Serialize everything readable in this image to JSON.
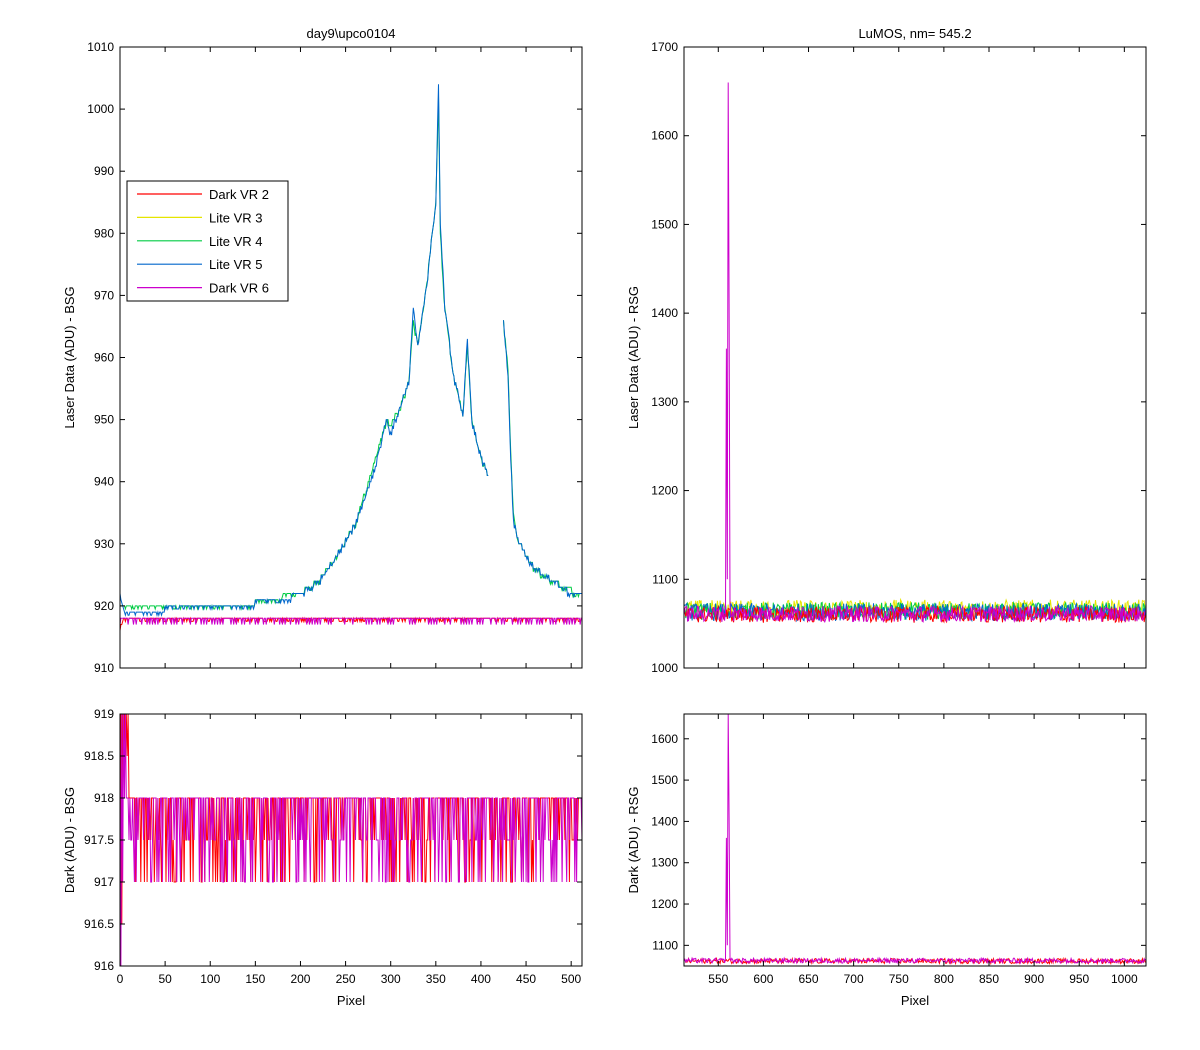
{
  "chart_data": [
    {
      "id": "tl",
      "type": "line",
      "title": "day9\\upco0104",
      "xlabel": "",
      "ylabel": "Laser Data (ADU) - BSG",
      "xlim": [
        0,
        512
      ],
      "ylim": [
        910,
        1010
      ],
      "xticks": [
        0,
        50,
        100,
        150,
        200,
        250,
        300,
        350,
        400,
        450,
        500
      ],
      "xtick_labels": [
        "",
        "",
        "",
        "",
        "",
        "",
        "",
        "",
        "",
        "",
        ""
      ],
      "yticks": [
        910,
        920,
        930,
        940,
        950,
        960,
        970,
        980,
        990,
        1000,
        1010
      ],
      "legend": {
        "position": "upper-left",
        "entries": [
          {
            "label": "Dark VR 2",
            "color": "#ff0000"
          },
          {
            "label": "Lite VR 3",
            "color": "#e5e500"
          },
          {
            "label": "Lite VR 4",
            "color": "#00cc44"
          },
          {
            "label": "Lite VR 5",
            "color": "#0066cc"
          },
          {
            "label": "Dark VR 6",
            "color": "#cc00cc"
          }
        ]
      },
      "series": [
        {
          "name": "Lite VR 4",
          "color": "#00cc44",
          "x": [
            0,
            5,
            20,
            50,
            100,
            150,
            180,
            200,
            220,
            240,
            260,
            280,
            295,
            300,
            310,
            320,
            325,
            330,
            340,
            350,
            353,
            355,
            360,
            370,
            380,
            385,
            390,
            400,
            408
          ],
          "y": [
            920,
            919.5,
            919.5,
            920,
            920,
            920.5,
            921.5,
            922,
            924,
            928,
            933,
            942,
            950,
            949,
            952,
            956,
            966,
            962,
            972,
            985,
            1002,
            980,
            968,
            957,
            951,
            962,
            950,
            944,
            941
          ]
        },
        {
          "name": "Lite VR 4",
          "color": "#00cc44",
          "x": [
            425,
            430,
            433,
            436,
            440,
            450,
            460,
            470,
            480,
            500,
            512
          ],
          "y": [
            966,
            958,
            945,
            935,
            931,
            928,
            926,
            925,
            924,
            922.5,
            922
          ]
        },
        {
          "name": "Lite VR 5",
          "color": "#0066cc",
          "x": [
            0,
            5,
            20,
            50,
            100,
            150,
            180,
            200,
            220,
            240,
            260,
            280,
            295,
            300,
            310,
            320,
            325,
            330,
            340,
            350,
            353,
            355,
            360,
            370,
            380,
            385,
            390,
            400,
            408
          ],
          "y": [
            921.5,
            919,
            919,
            919.5,
            920,
            920.5,
            921,
            922,
            924,
            928,
            933,
            941,
            950,
            948,
            952,
            956,
            968,
            962,
            972,
            985,
            1004,
            982,
            968,
            957,
            951,
            963,
            950,
            944,
            941
          ]
        },
        {
          "name": "Lite VR 5",
          "color": "#0066cc",
          "x": [
            425,
            430,
            433,
            436,
            440,
            450,
            460,
            470,
            480,
            500,
            512
          ],
          "y": [
            966,
            957,
            944,
            934,
            931,
            928,
            926,
            925,
            924,
            922,
            922
          ]
        },
        {
          "name": "Dark VR 2",
          "color": "#ff0000",
          "x": [
            0,
            3,
            6,
            512
          ],
          "y": [
            916,
            918,
            918,
            918
          ]
        },
        {
          "name": "Dark VR 6",
          "color": "#cc00cc",
          "x": [
            0,
            512
          ],
          "y": [
            918,
            918
          ],
          "noise": {
            "min": 917,
            "step": 3
          }
        }
      ]
    },
    {
      "id": "tr",
      "type": "line",
      "title": "LuMOS, nm= 545.2",
      "xlabel": "",
      "ylabel": "Laser Data (ADU) - RSG",
      "xlim": [
        512,
        1024
      ],
      "ylim": [
        1000,
        1700
      ],
      "xticks": [
        550,
        600,
        650,
        700,
        750,
        800,
        850,
        900,
        950,
        1000
      ],
      "xtick_labels": [
        "",
        "",
        "",
        "",
        "",
        "",
        "",
        "",
        "",
        ""
      ],
      "yticks": [
        1000,
        1100,
        1200,
        1300,
        1400,
        1500,
        1600,
        1700
      ],
      "series": [
        {
          "name": "Lite VR 3",
          "color": "#e5e500",
          "baseline": 1067,
          "amp": 10
        },
        {
          "name": "Lite VR 4",
          "color": "#00cc44",
          "baseline": 1064,
          "amp": 10
        },
        {
          "name": "Lite VR 5",
          "color": "#0066cc",
          "baseline": 1063,
          "amp": 10
        },
        {
          "name": "Dark VR 2",
          "color": "#ff0000",
          "baseline": 1060,
          "amp": 9
        },
        {
          "name": "Dark VR 6",
          "color": "#cc00cc",
          "baseline": 1061,
          "amp": 9,
          "spike": {
            "x": [
              559,
              560,
              561,
              562,
              563
            ],
            "y": [
              1360,
              1100,
              1660,
              1410,
              1070
            ]
          }
        }
      ]
    },
    {
      "id": "bl",
      "type": "line",
      "title": "",
      "xlabel": "Pixel",
      "ylabel": "Dark (ADU) - BSG",
      "xlim": [
        0,
        512
      ],
      "ylim": [
        916,
        919
      ],
      "xticks": [
        0,
        50,
        100,
        150,
        200,
        250,
        300,
        350,
        400,
        450,
        500
      ],
      "xtick_labels": [
        "0",
        "50",
        "100",
        "150",
        "200",
        "250",
        "300",
        "350",
        "400",
        "450",
        "500"
      ],
      "yticks": [
        916,
        916.5,
        917,
        917.5,
        918,
        918.5,
        919
      ],
      "ytick_labels": [
        "916",
        "916.5",
        "917",
        "917.5",
        "918",
        "918.5",
        "919"
      ],
      "series": [
        {
          "name": "Dark VR 2",
          "color": "#ff0000",
          "x": [
            0,
            1,
            2,
            3,
            4,
            5,
            6,
            7,
            8,
            9,
            10,
            11,
            12
          ],
          "y": [
            916,
            919,
            916.5,
            919,
            918.5,
            919,
            918.5,
            919,
            918.5,
            919,
            918,
            918,
            918
          ],
          "pattern": {
            "high": 918,
            "levels": [
              917,
              917.5
            ]
          }
        },
        {
          "name": "Dark VR 6",
          "color": "#cc00cc",
          "x": [
            0,
            1,
            2,
            3,
            4,
            5,
            6,
            7,
            8
          ],
          "y": [
            919,
            916,
            919,
            917,
            919,
            918,
            919,
            918,
            918
          ],
          "pattern": {
            "high": 918,
            "levels": [
              917,
              917.5
            ]
          }
        }
      ]
    },
    {
      "id": "br",
      "type": "line",
      "title": "",
      "xlabel": "Pixel",
      "ylabel": "Dark (ADU) - RSG",
      "xlim": [
        512,
        1024
      ],
      "ylim": [
        1050,
        1660
      ],
      "xticks": [
        550,
        600,
        650,
        700,
        750,
        800,
        850,
        900,
        950,
        1000
      ],
      "xtick_labels": [
        "550",
        "600",
        "650",
        "700",
        "750",
        "800",
        "850",
        "900",
        "950",
        "1000"
      ],
      "yticks": [
        1100,
        1200,
        1300,
        1400,
        1500,
        1600
      ],
      "series": [
        {
          "name": "Dark VR 2",
          "color": "#ff0000",
          "baseline": 1062,
          "amp": 6
        },
        {
          "name": "Dark VR 6",
          "color": "#cc00cc",
          "baseline": 1063,
          "amp": 6,
          "spike": {
            "x": [
              559,
              560,
              561,
              562,
              563
            ],
            "y": [
              1360,
              1100,
              1660,
              1410,
              1070
            ]
          }
        }
      ]
    }
  ]
}
